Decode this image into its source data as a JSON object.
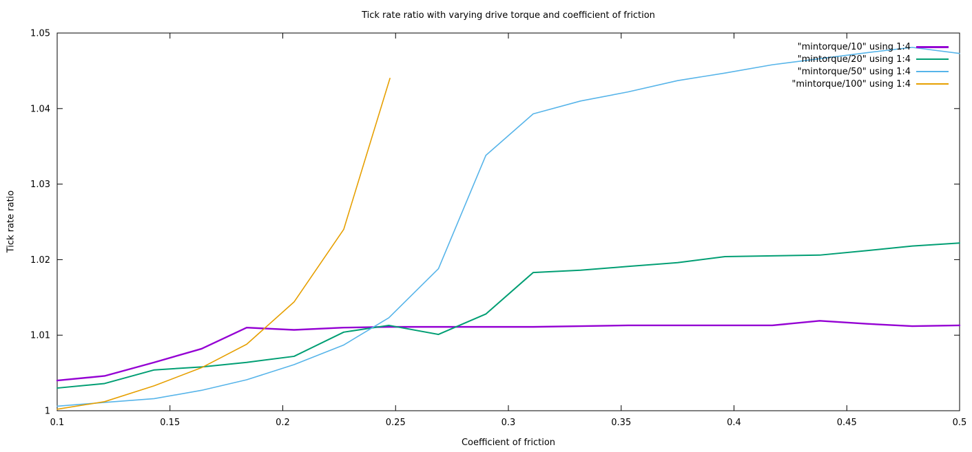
{
  "figure": {
    "title": "Tick rate ratio with varying drive torque and coefficient of friction",
    "xlabel": "Coefficient of friction",
    "ylabel": "Tick rate ratio"
  },
  "colors": {
    "background": "#ffffff",
    "axis": "#000000",
    "text": "#000000"
  },
  "chart_data": {
    "type": "line",
    "title": "Tick rate ratio with varying drive torque and coefficient of friction",
    "xlabel": "Coefficient of friction",
    "ylabel": "Tick rate ratio",
    "xlim": [
      0.1,
      0.5
    ],
    "ylim": [
      1.0,
      1.05
    ],
    "xticks": [
      0.1,
      0.15,
      0.2,
      0.25,
      0.3,
      0.35,
      0.4,
      0.45,
      0.5
    ],
    "xtick_labels": [
      "0.1",
      "0.15",
      "0.2",
      "0.25",
      "0.3",
      "0.35",
      "0.4",
      "0.45",
      "0.5"
    ],
    "yticks": [
      1.0,
      1.01,
      1.02,
      1.03,
      1.04,
      1.05
    ],
    "ytick_labels": [
      "1",
      "1.01",
      "1.02",
      "1.03",
      "1.04",
      "1.05"
    ],
    "grid": false,
    "legend_position": "top-right-inside",
    "series": [
      {
        "name": "\"mintorque/10\" using 1:4",
        "color": "#9400d3",
        "x": [
          0.1,
          0.121,
          0.143,
          0.164,
          0.184,
          0.205,
          0.227,
          0.247,
          0.269,
          0.29,
          0.311,
          0.332,
          0.353,
          0.375,
          0.396,
          0.417,
          0.438,
          0.459,
          0.479,
          0.5
        ],
        "y": [
          1.004,
          1.0046,
          1.0064,
          1.0082,
          1.011,
          1.0107,
          1.011,
          1.0111,
          1.0111,
          1.0111,
          1.0111,
          1.0112,
          1.0113,
          1.0113,
          1.0113,
          1.0113,
          1.0119,
          1.0115,
          1.0112,
          1.0113
        ]
      },
      {
        "name": "\"mintorque/20\" using 1:4",
        "color": "#009e73",
        "x": [
          0.1,
          0.121,
          0.143,
          0.164,
          0.184,
          0.205,
          0.227,
          0.247,
          0.269,
          0.29,
          0.311,
          0.332,
          0.353,
          0.375,
          0.396,
          0.417,
          0.438,
          0.459,
          0.479,
          0.5
        ],
        "y": [
          1.003,
          1.0036,
          1.0054,
          1.0058,
          1.0064,
          1.0072,
          1.0104,
          1.0113,
          1.0101,
          1.0128,
          1.0183,
          1.0186,
          1.0191,
          1.0196,
          1.0204,
          1.0205,
          1.0206,
          1.0212,
          1.0218,
          1.0222
        ]
      },
      {
        "name": "\"mintorque/50\" using 1:4",
        "color": "#56b4e9",
        "x": [
          0.1,
          0.121,
          0.143,
          0.164,
          0.184,
          0.205,
          0.227,
          0.247,
          0.269,
          0.29,
          0.311,
          0.332,
          0.353,
          0.375,
          0.396,
          0.417,
          0.438,
          0.459,
          0.479,
          0.5
        ],
        "y": [
          1.0006,
          1.0011,
          1.0016,
          1.0027,
          1.0041,
          1.0061,
          1.0087,
          1.0123,
          1.0188,
          1.0338,
          1.0393,
          1.041,
          1.0422,
          1.0437,
          1.0447,
          1.0458,
          1.0466,
          1.0474,
          1.0481,
          1.0473
        ]
      },
      {
        "name": "\"mintorque/100\" using 1:4",
        "color": "#e69f00",
        "x": [
          0.1,
          0.121,
          0.143,
          0.164,
          0.184,
          0.205,
          0.227,
          0.2475
        ],
        "y": [
          1.0002,
          1.0012,
          1.0033,
          1.0057,
          1.0088,
          1.0144,
          1.024,
          1.044
        ]
      }
    ]
  }
}
